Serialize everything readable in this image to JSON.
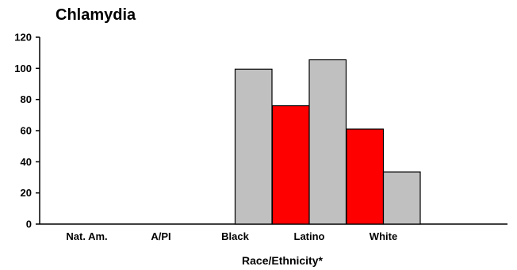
{
  "chart_data": {
    "type": "bar",
    "title": "Chlamydia",
    "xlabel": "Race/Ethnicity*",
    "ylabel": "",
    "ylim": [
      0,
      120
    ],
    "yticks": [
      0,
      20,
      40,
      60,
      80,
      100,
      120
    ],
    "categories": [
      "Nat. Am.",
      "A/PI",
      "Black",
      "Latino",
      "White"
    ],
    "series": [
      {
        "color": "#ff0000",
        "values": [
          null,
          null,
          null,
          76,
          61
        ]
      },
      {
        "color": "#c0c0c0",
        "values": [
          null,
          null,
          99.5,
          105.5,
          33.5
        ]
      }
    ],
    "grid": false,
    "legend": "none"
  }
}
